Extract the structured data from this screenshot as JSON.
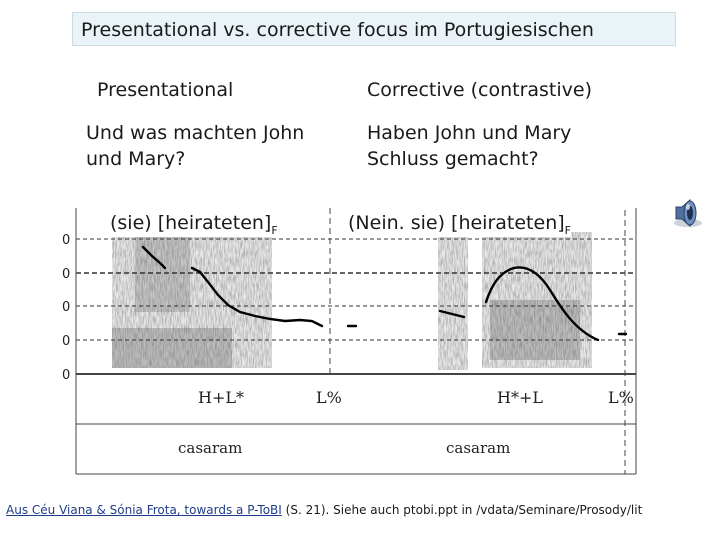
{
  "title": "Presentational vs. corrective focus im Portugiesischen",
  "columns": {
    "left": {
      "heading": "Presentational",
      "question_line1": "Und was machten John",
      "question_line2": "und Mary?",
      "label_text": "(sie) [heirateten]",
      "label_sub": "F"
    },
    "right": {
      "heading": "Corrective (contrastive)",
      "question_line1": "Haben John und Mary",
      "question_line2": "Schluss gemacht?",
      "label_text": "(Nein. sie) [heirateten]",
      "label_sub": "F"
    }
  },
  "figure": {
    "tones_left": [
      "H+L*",
      "L%"
    ],
    "tones_right": [
      "H*+L",
      "L%"
    ],
    "words": [
      "casaram",
      "casaram"
    ],
    "axis_tick_label": "0"
  },
  "speaker_icon": "speaker-icon",
  "footer": {
    "link_text": "Aus Céu Viana & Sónia Frota, towards a P-ToBI",
    "rest_text": " (S. 21). Siehe auch ptobi.ppt in /vdata/Seminare/Prosody/lit"
  }
}
